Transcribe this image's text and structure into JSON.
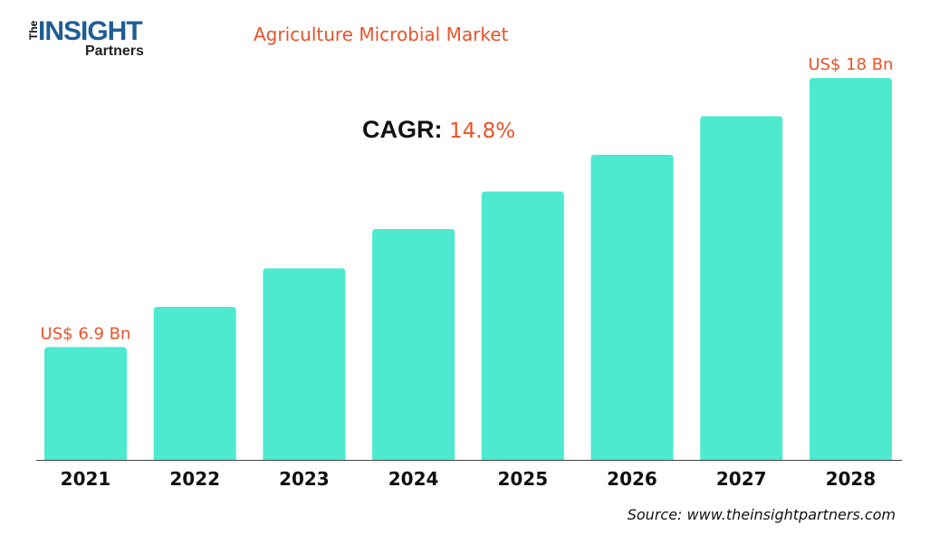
{
  "logo": {
    "the": "The",
    "insight": "INSIGHT",
    "partners": "Partners"
  },
  "chart_data": {
    "type": "bar",
    "title": "Agriculture Microbial Market",
    "categories": [
      "2021",
      "2022",
      "2023",
      "2024",
      "2025",
      "2026",
      "2027",
      "2028"
    ],
    "values": [
      6.9,
      8.56,
      10.15,
      11.77,
      13.32,
      14.83,
      16.42,
      18
    ],
    "unit": "US$ Bn",
    "data_labels": [
      {
        "category": "2021",
        "text": "US$ 6.9 Bn"
      },
      {
        "category": "2028",
        "text": "US$ 18 Bn"
      }
    ],
    "ylim": [
      2.25,
      18.6
    ],
    "grid": false,
    "bar_color": "#4deacf",
    "label_color": "#e8532a",
    "xlabel": "",
    "ylabel": ""
  },
  "cagr": {
    "label": "CAGR:",
    "value": "14.8%"
  },
  "source": "Source: www.theinsightpartners.com"
}
